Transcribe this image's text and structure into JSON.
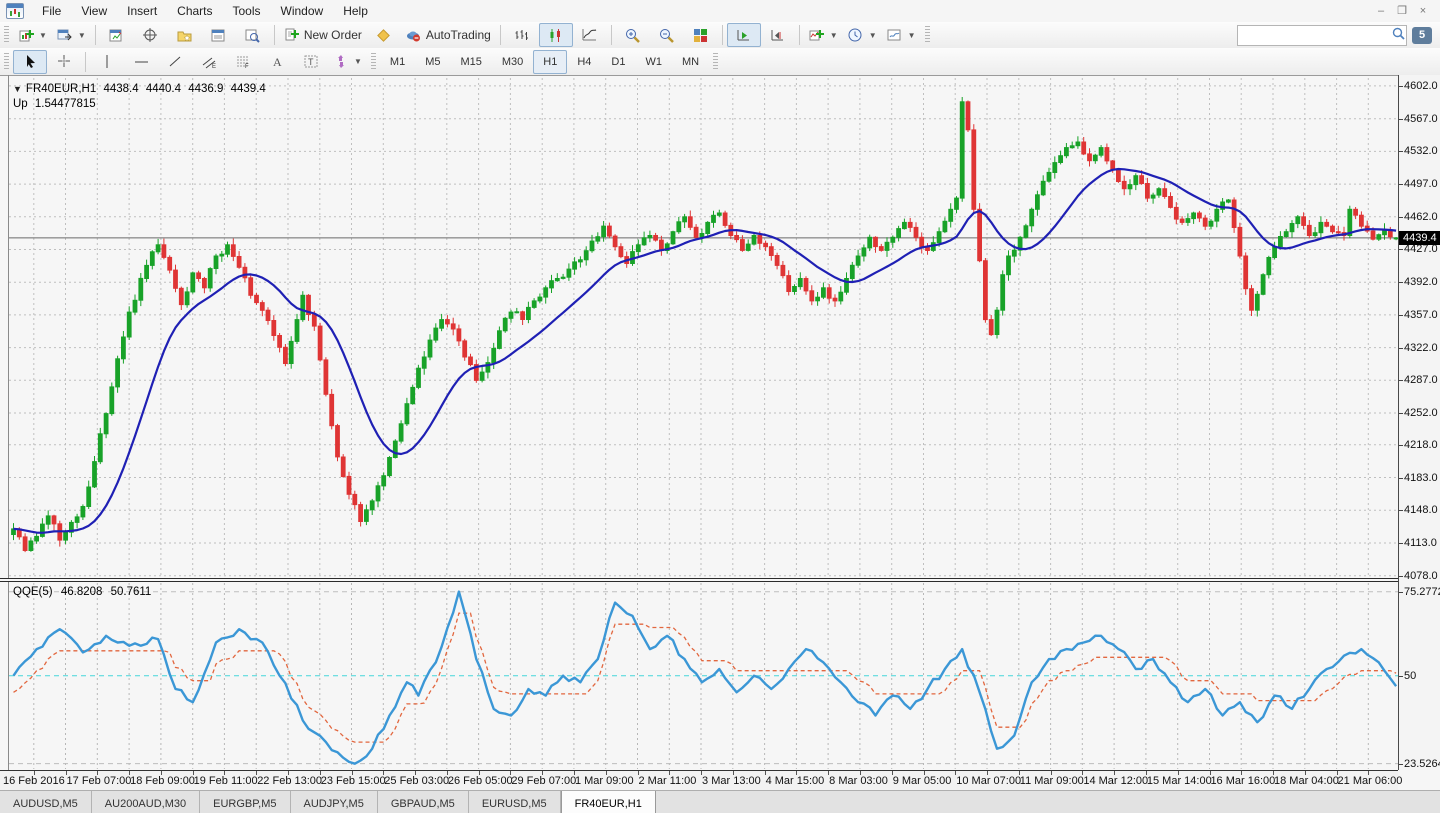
{
  "menu": {
    "items": [
      "File",
      "View",
      "Insert",
      "Charts",
      "Tools",
      "Window",
      "Help"
    ]
  },
  "window_controls": {
    "minimize": "–",
    "restore": "❐",
    "close": "×"
  },
  "toolbar_main": {
    "buttons": [
      {
        "name": "new-chart",
        "icon": "chart-plus",
        "dropdown": true
      },
      {
        "name": "profiles",
        "icon": "window-profiles",
        "dropdown": true
      },
      {
        "sep": true
      },
      {
        "name": "market-watch",
        "icon": "market-watch"
      },
      {
        "name": "data-window",
        "icon": "crosshair-circle"
      },
      {
        "name": "navigator",
        "icon": "folder-star"
      },
      {
        "name": "terminal",
        "icon": "terminal-panel"
      },
      {
        "name": "strategy-tester",
        "icon": "tester-magnifier"
      },
      {
        "sep": true
      },
      {
        "name": "new-order",
        "icon": "order-plus",
        "label": "New Order"
      },
      {
        "name": "metaeditor",
        "icon": "metaeditor-diamond"
      },
      {
        "name": "autotrading",
        "icon": "autotrading-hat",
        "label": "AutoTrading"
      },
      {
        "sep": true
      },
      {
        "name": "bar-chart-mode",
        "icon": "ohlc-bars"
      },
      {
        "name": "candlestick-mode",
        "icon": "candles",
        "active": true
      },
      {
        "name": "line-chart-mode",
        "icon": "line-curve"
      },
      {
        "sep": true
      },
      {
        "name": "zoom-in",
        "icon": "magnifier-plus"
      },
      {
        "name": "zoom-out",
        "icon": "magnifier-minus"
      },
      {
        "name": "tile-windows",
        "icon": "tiles"
      },
      {
        "sep": true
      },
      {
        "name": "auto-scroll",
        "icon": "autoscroll",
        "active": true
      },
      {
        "name": "chart-shift",
        "icon": "chart-shift"
      },
      {
        "sep": true
      },
      {
        "name": "indicators-list",
        "icon": "indicators-plus",
        "dropdown": true
      },
      {
        "name": "periods",
        "icon": "clock",
        "dropdown": true
      },
      {
        "name": "templates",
        "icon": "template-chart",
        "dropdown": true
      }
    ],
    "search": {
      "value": "",
      "badge": "5"
    }
  },
  "toolbar_tools": {
    "tools": [
      {
        "name": "cursor",
        "icon": "cursor-arrow",
        "active": true
      },
      {
        "name": "crosshair",
        "icon": "crosshair"
      },
      {
        "sep": true
      },
      {
        "name": "vertical-line",
        "icon": "vline"
      },
      {
        "name": "horizontal-line",
        "icon": "hline"
      },
      {
        "name": "trendline",
        "icon": "trendline"
      },
      {
        "name": "equidistant-channel",
        "icon": "channel"
      },
      {
        "name": "fibonacci",
        "icon": "fibo"
      },
      {
        "name": "text",
        "icon": "text-a"
      },
      {
        "name": "text-label",
        "icon": "text-label"
      },
      {
        "name": "arrows",
        "icon": "arrows-tool",
        "dropdown": true
      }
    ],
    "timeframes": [
      "M1",
      "M5",
      "M15",
      "M30",
      "H1",
      "H4",
      "D1",
      "W1",
      "MN"
    ],
    "active_timeframe": "H1"
  },
  "chart_header": {
    "symbol_period": "FR40EUR,H1",
    "open": "4438.4",
    "high": "4440.4",
    "low": "4436.9",
    "close": "4439.4",
    "indicator_name": "Up",
    "indicator_value": "1.54477815"
  },
  "indicator_header": {
    "label": "QQE(5)",
    "value1": "46.8208",
    "value2": "50.7611"
  },
  "price_axis": {
    "ticks": [
      "4602.0",
      "4567.0",
      "4532.0",
      "4497.0",
      "4462.0",
      "4427.0",
      "4392.0",
      "4357.0",
      "4322.0",
      "4287.0",
      "4252.0",
      "4218.0",
      "4183.0",
      "4148.0",
      "4113.0",
      "4078.0"
    ],
    "current": "4439.4"
  },
  "indicator_axis": {
    "ticks": [
      "75.2772",
      "50",
      "23.5264"
    ]
  },
  "time_axis": {
    "labels": [
      "16 Feb 2016",
      "17 Feb 07:00",
      "18 Feb 09:00",
      "19 Feb 11:00",
      "22 Feb 13:00",
      "23 Feb 15:00",
      "25 Feb 03:00",
      "26 Feb 05:00",
      "29 Feb 07:00",
      "1 Mar 09:00",
      "2 Mar 11:00",
      "3 Mar 13:00",
      "4 Mar 15:00",
      "8 Mar 03:00",
      "9 Mar 05:00",
      "10 Mar 07:00",
      "11 Mar 09:00",
      "14 Mar 12:00",
      "15 Mar 14:00",
      "16 Mar 16:00",
      "18 Mar 04:00",
      "21 Mar 06:00"
    ]
  },
  "bottom_tabs": {
    "tabs": [
      {
        "label": "AUDUSD,M5"
      },
      {
        "label": "AU200AUD,M30"
      },
      {
        "label": "EURGBP,M5"
      },
      {
        "label": "AUDJPY,M5"
      },
      {
        "label": "GBPAUD,M5"
      },
      {
        "label": "EURUSD,M5"
      },
      {
        "label": "FR40EUR,H1",
        "active": true
      }
    ]
  },
  "colors": {
    "up": "#18a228",
    "down": "#df3535",
    "ma": "#1f20b4",
    "grid": "#bfbfbf",
    "chart_bg": "#f6f6f6",
    "qqe": "#3b97d6",
    "qqe_signal": "#e2673f",
    "level50": "#45d6da",
    "current_price_line": "#6a6a6a",
    "badge_bg": "#000000"
  },
  "chart_data": {
    "type": "candlestick",
    "symbol": "FR40EUR",
    "timeframe": "H1",
    "title": "FR40EUR,H1",
    "bars": 240,
    "price_range": {
      "min": 4075.5,
      "max": 4610.5
    },
    "price_ticks": [
      4602,
      4567,
      4532,
      4497,
      4462,
      4427,
      4392,
      4357,
      4322,
      4287,
      4252,
      4218,
      4183,
      4148,
      4113,
      4078
    ],
    "current_bar": {
      "open": 4438.4,
      "high": 4440.4,
      "low": 4436.9,
      "close": 4439.4
    },
    "current_price": 4439.4,
    "time_labels": [
      "16 Feb 2016",
      "17 Feb 07:00",
      "18 Feb 09:00",
      "19 Feb 11:00",
      "22 Feb 13:00",
      "23 Feb 15:00",
      "25 Feb 03:00",
      "26 Feb 05:00",
      "29 Feb 07:00",
      "1 Mar 09:00",
      "2 Mar 11:00",
      "3 Mar 13:00",
      "4 Mar 15:00",
      "8 Mar 03:00",
      "9 Mar 05:00",
      "10 Mar 07:00",
      "11 Mar 09:00",
      "14 Mar 12:00",
      "15 Mar 14:00",
      "16 Mar 16:00",
      "18 Mar 04:00",
      "21 Mar 06:00"
    ],
    "close_keyframes": [
      [
        0,
        4128
      ],
      [
        2,
        4105
      ],
      [
        4,
        4120
      ],
      [
        6,
        4142
      ],
      [
        8,
        4116
      ],
      [
        10,
        4135
      ],
      [
        12,
        4152
      ],
      [
        14,
        4200
      ],
      [
        17,
        4280
      ],
      [
        20,
        4360
      ],
      [
        23,
        4410
      ],
      [
        25,
        4432
      ],
      [
        27,
        4405
      ],
      [
        29,
        4368
      ],
      [
        31,
        4402
      ],
      [
        33,
        4386
      ],
      [
        35,
        4420
      ],
      [
        37,
        4432
      ],
      [
        39,
        4408
      ],
      [
        41,
        4378
      ],
      [
        43,
        4362
      ],
      [
        45,
        4335
      ],
      [
        47,
        4305
      ],
      [
        49,
        4352
      ],
      [
        50,
        4378
      ],
      [
        52,
        4345
      ],
      [
        54,
        4272
      ],
      [
        56,
        4205
      ],
      [
        58,
        4165
      ],
      [
        60,
        4136
      ],
      [
        62,
        4158
      ],
      [
        64,
        4185
      ],
      [
        66,
        4222
      ],
      [
        68,
        4262
      ],
      [
        70,
        4300
      ],
      [
        72,
        4330
      ],
      [
        74,
        4352
      ],
      [
        76,
        4342
      ],
      [
        78,
        4312
      ],
      [
        80,
        4287
      ],
      [
        82,
        4306
      ],
      [
        84,
        4340
      ],
      [
        86,
        4360
      ],
      [
        88,
        4352
      ],
      [
        90,
        4372
      ],
      [
        92,
        4386
      ],
      [
        94,
        4396
      ],
      [
        96,
        4406
      ],
      [
        98,
        4416
      ],
      [
        100,
        4436
      ],
      [
        102,
        4452
      ],
      [
        104,
        4430
      ],
      [
        106,
        4412
      ],
      [
        108,
        4432
      ],
      [
        110,
        4442
      ],
      [
        112,
        4426
      ],
      [
        114,
        4446
      ],
      [
        116,
        4462
      ],
      [
        118,
        4440
      ],
      [
        120,
        4456
      ],
      [
        122,
        4466
      ],
      [
        124,
        4442
      ],
      [
        126,
        4426
      ],
      [
        128,
        4442
      ],
      [
        130,
        4430
      ],
      [
        132,
        4410
      ],
      [
        134,
        4382
      ],
      [
        136,
        4396
      ],
      [
        138,
        4372
      ],
      [
        140,
        4386
      ],
      [
        142,
        4372
      ],
      [
        144,
        4396
      ],
      [
        146,
        4420
      ],
      [
        148,
        4440
      ],
      [
        150,
        4426
      ],
      [
        152,
        4440
      ],
      [
        154,
        4456
      ],
      [
        156,
        4440
      ],
      [
        158,
        4426
      ],
      [
        160,
        4446
      ],
      [
        162,
        4470
      ],
      [
        163,
        4482
      ],
      [
        164,
        4585
      ],
      [
        165,
        4555
      ],
      [
        166,
        4470
      ],
      [
        167,
        4415
      ],
      [
        168,
        4352
      ],
      [
        169,
        4336
      ],
      [
        170,
        4362
      ],
      [
        171,
        4400
      ],
      [
        172,
        4420
      ],
      [
        174,
        4440
      ],
      [
        176,
        4470
      ],
      [
        178,
        4500
      ],
      [
        180,
        4520
      ],
      [
        182,
        4536
      ],
      [
        184,
        4542
      ],
      [
        186,
        4522
      ],
      [
        188,
        4536
      ],
      [
        190,
        4512
      ],
      [
        192,
        4492
      ],
      [
        194,
        4506
      ],
      [
        196,
        4482
      ],
      [
        198,
        4492
      ],
      [
        200,
        4472
      ],
      [
        202,
        4456
      ],
      [
        204,
        4466
      ],
      [
        206,
        4452
      ],
      [
        208,
        4470
      ],
      [
        210,
        4480
      ],
      [
        212,
        4420
      ],
      [
        213,
        4385
      ],
      [
        214,
        4362
      ],
      [
        216,
        4400
      ],
      [
        218,
        4430
      ],
      [
        220,
        4446
      ],
      [
        222,
        4462
      ],
      [
        224,
        4442
      ],
      [
        226,
        4456
      ],
      [
        228,
        4446
      ],
      [
        230,
        4442
      ],
      [
        231,
        4470
      ],
      [
        233,
        4452
      ],
      [
        235,
        4438
      ],
      [
        237,
        4448
      ],
      [
        239,
        4439.4
      ]
    ],
    "overlays": [
      {
        "name": "moving-average",
        "type": "line",
        "color": "#1f20b4"
      }
    ],
    "subwindow": {
      "name": "QQE(5)",
      "range": {
        "min": 21.9,
        "max": 77.9
      },
      "axis_labels": [
        75.2772,
        50,
        23.5264
      ],
      "levels": [
        {
          "value": 75.2772,
          "color": "#bdbdbd",
          "style": "dash"
        },
        {
          "value": 50,
          "color": "#45d6da",
          "style": "dash"
        },
        {
          "value": 23.5264,
          "color": "#bdbdbd",
          "style": "dash"
        }
      ],
      "last_values": {
        "qqe": 46.8208,
        "signal": 50.7611
      },
      "line_keyframes": [
        [
          0,
          50
        ],
        [
          4,
          58
        ],
        [
          8,
          64
        ],
        [
          12,
          57
        ],
        [
          16,
          62
        ],
        [
          20,
          59
        ],
        [
          25,
          61
        ],
        [
          28,
          46
        ],
        [
          31,
          42
        ],
        [
          35,
          60
        ],
        [
          39,
          64
        ],
        [
          43,
          60
        ],
        [
          46,
          50
        ],
        [
          51,
          34
        ],
        [
          54,
          30
        ],
        [
          59,
          23.5
        ],
        [
          62,
          28
        ],
        [
          65,
          38
        ],
        [
          68,
          48
        ],
        [
          70,
          44
        ],
        [
          73,
          54
        ],
        [
          77,
          75.3
        ],
        [
          80,
          55
        ],
        [
          83,
          40
        ],
        [
          86,
          38
        ],
        [
          89,
          46
        ],
        [
          92,
          44
        ],
        [
          95,
          50
        ],
        [
          98,
          48
        ],
        [
          101,
          55
        ],
        [
          104,
          72
        ],
        [
          107,
          68
        ],
        [
          110,
          58
        ],
        [
          113,
          62
        ],
        [
          116,
          55
        ],
        [
          119,
          48
        ],
        [
          122,
          52
        ],
        [
          125,
          45
        ],
        [
          128,
          50
        ],
        [
          131,
          46
        ],
        [
          134,
          52
        ],
        [
          137,
          58
        ],
        [
          140,
          54
        ],
        [
          143,
          48
        ],
        [
          146,
          42
        ],
        [
          149,
          38
        ],
        [
          152,
          44
        ],
        [
          155,
          40
        ],
        [
          158,
          46
        ],
        [
          161,
          52
        ],
        [
          164,
          58
        ],
        [
          167,
          45
        ],
        [
          170,
          28
        ],
        [
          173,
          32
        ],
        [
          176,
          48
        ],
        [
          179,
          55
        ],
        [
          182,
          58
        ],
        [
          185,
          60
        ],
        [
          188,
          62
        ],
        [
          191,
          58
        ],
        [
          194,
          52
        ],
        [
          197,
          55
        ],
        [
          200,
          48
        ],
        [
          203,
          42
        ],
        [
          206,
          46
        ],
        [
          209,
          38
        ],
        [
          212,
          42
        ],
        [
          215,
          36
        ],
        [
          218,
          44
        ],
        [
          221,
          40
        ],
        [
          224,
          46
        ],
        [
          227,
          52
        ],
        [
          230,
          56
        ],
        [
          233,
          58
        ],
        [
          236,
          54
        ],
        [
          239,
          46.8208
        ]
      ]
    }
  }
}
